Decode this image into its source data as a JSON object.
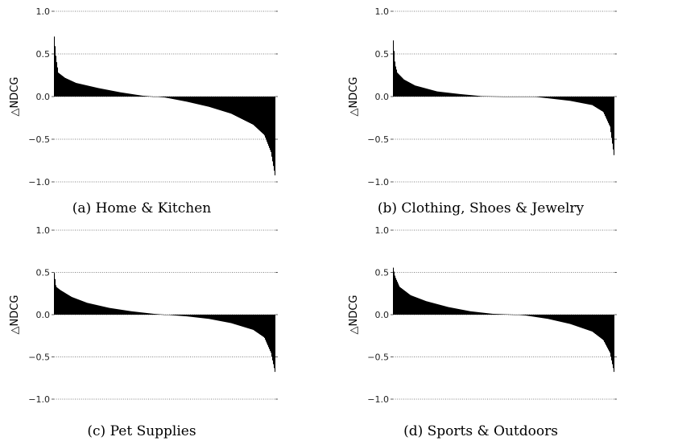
{
  "chart_data": [
    {
      "type": "bar",
      "caption": "(a) Home & Kitchen",
      "ylabel": "△NDCG",
      "ylim": [
        -1.0,
        1.0
      ],
      "yticks": [
        1.0,
        0.5,
        0.0,
        -0.5,
        -1.0
      ],
      "ytick_labels": [
        "1.0",
        "0.5",
        "0.0",
        "−0.5",
        "−1.0"
      ],
      "grid": "horizontal dotted",
      "x": [
        0,
        0.01,
        0.02,
        0.05,
        0.1,
        0.2,
        0.3,
        0.4,
        0.45,
        0.5,
        0.6,
        0.7,
        0.8,
        0.9,
        0.95,
        0.98,
        1.0
      ],
      "values": [
        0.76,
        0.45,
        0.28,
        0.22,
        0.16,
        0.1,
        0.05,
        0.01,
        0.0,
        -0.01,
        -0.06,
        -0.12,
        -0.2,
        -0.33,
        -0.45,
        -0.65,
        -0.95
      ]
    },
    {
      "type": "bar",
      "caption": "(b) Clothing, Shoes & Jewelry",
      "ylabel": "△NDCG",
      "ylim": [
        -1.0,
        1.0
      ],
      "yticks": [
        1.0,
        0.5,
        0.0,
        -0.5,
        -1.0
      ],
      "ytick_labels": [
        "1.0",
        "0.5",
        "0.0",
        "−0.5",
        "−1.0"
      ],
      "grid": "horizontal dotted",
      "x": [
        0,
        0.01,
        0.02,
        0.05,
        0.1,
        0.2,
        0.3,
        0.4,
        0.5,
        0.6,
        0.65,
        0.7,
        0.8,
        0.9,
        0.95,
        0.98,
        1.0
      ],
      "values": [
        0.72,
        0.38,
        0.28,
        0.2,
        0.13,
        0.06,
        0.03,
        0.005,
        0.0,
        0.0,
        -0.005,
        -0.02,
        -0.05,
        -0.1,
        -0.18,
        -0.35,
        -0.72
      ]
    },
    {
      "type": "bar",
      "caption": "(c) Pet Supplies",
      "ylabel": "△NDCG",
      "ylim": [
        -1.0,
        1.0
      ],
      "yticks": [
        1.0,
        0.5,
        0.0,
        -0.5,
        -1.0
      ],
      "ytick_labels": [
        "1.0",
        "0.5",
        "0.0",
        "−0.5",
        "−1.0"
      ],
      "grid": "horizontal dotted",
      "x": [
        0,
        0.01,
        0.03,
        0.08,
        0.15,
        0.25,
        0.35,
        0.45,
        0.5,
        0.6,
        0.7,
        0.8,
        0.9,
        0.95,
        0.98,
        1.0
      ],
      "values": [
        0.53,
        0.33,
        0.29,
        0.21,
        0.14,
        0.08,
        0.04,
        0.01,
        0.0,
        -0.02,
        -0.05,
        -0.1,
        -0.18,
        -0.27,
        -0.45,
        -0.7
      ]
    },
    {
      "type": "bar",
      "caption": "(d) Sports & Outdoors",
      "ylabel": "△NDCG",
      "ylim": [
        -1.0,
        1.0
      ],
      "yticks": [
        1.0,
        0.5,
        0.0,
        -0.5,
        -1.0
      ],
      "ytick_labels": [
        "1.0",
        "0.5",
        "0.0",
        "−0.5",
        "−1.0"
      ],
      "grid": "horizontal dotted",
      "x": [
        0,
        0.01,
        0.03,
        0.08,
        0.15,
        0.25,
        0.35,
        0.45,
        0.55,
        0.6,
        0.7,
        0.8,
        0.9,
        0.95,
        0.98,
        1.0
      ],
      "values": [
        0.58,
        0.45,
        0.33,
        0.23,
        0.16,
        0.09,
        0.04,
        0.01,
        0.0,
        -0.01,
        -0.05,
        -0.11,
        -0.2,
        -0.3,
        -0.45,
        -0.7
      ]
    }
  ]
}
